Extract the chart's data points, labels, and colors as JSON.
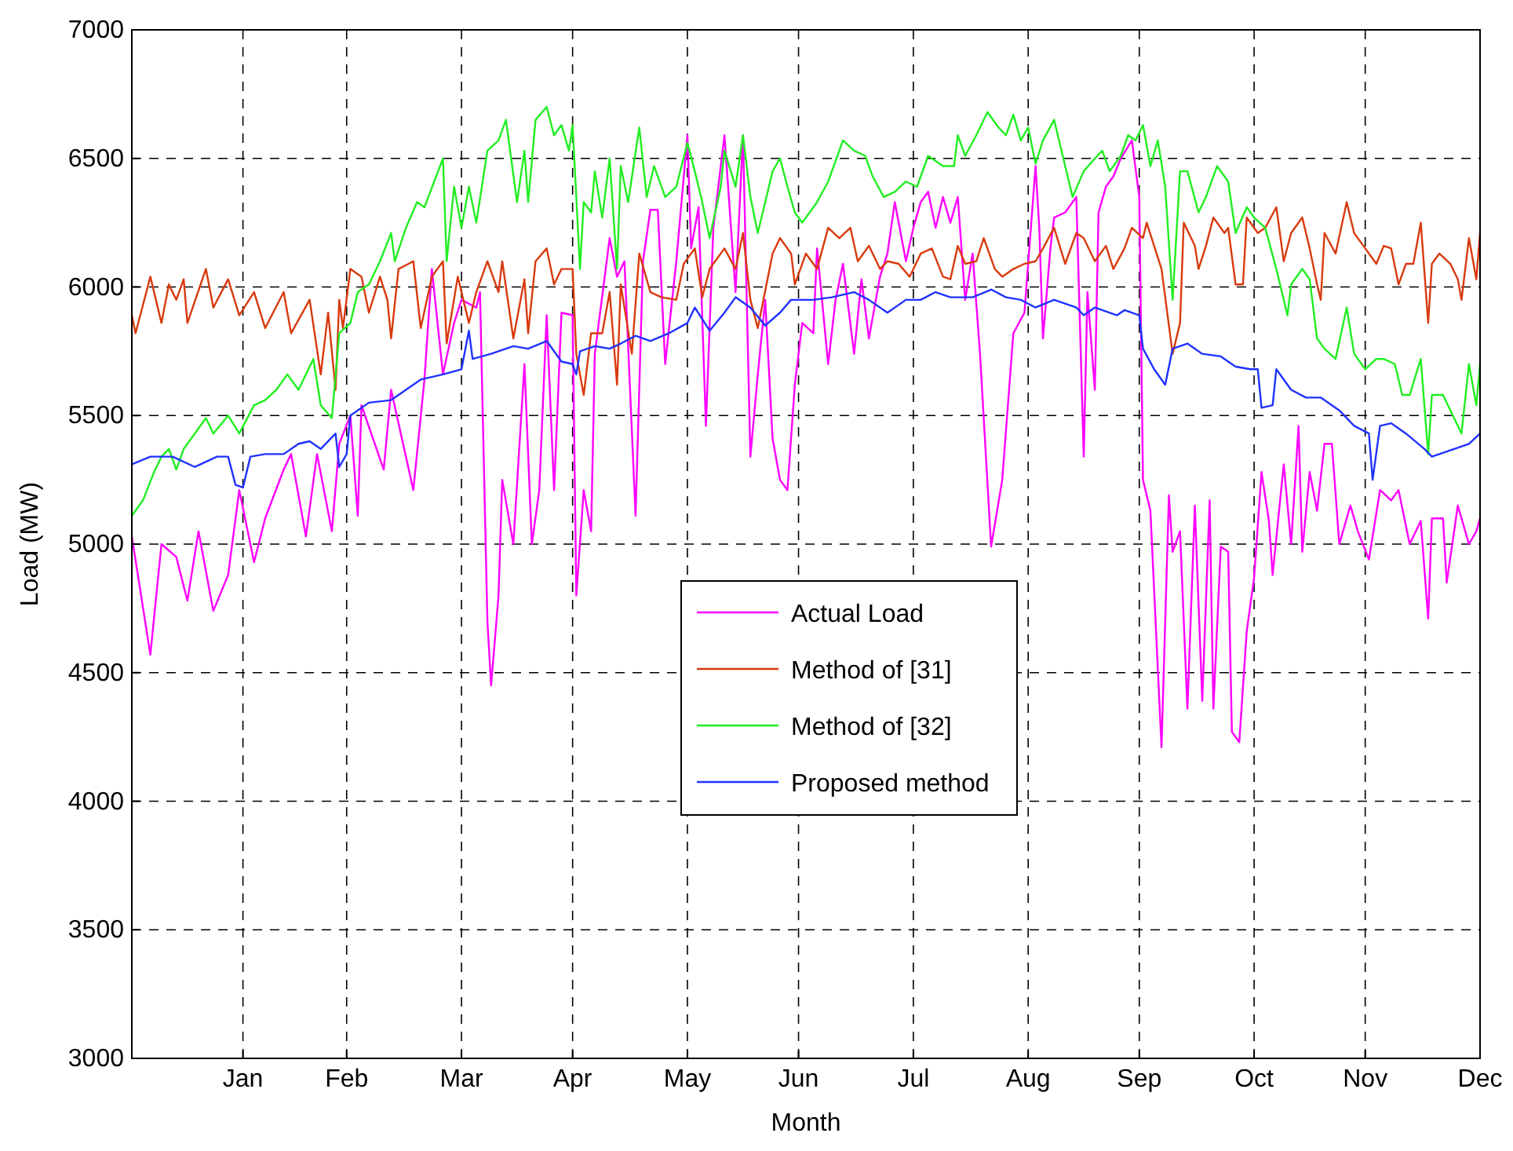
{
  "chart_data": {
    "type": "line",
    "xlabel": "Month",
    "ylabel": "Load (MW)",
    "xlim": [
      "--01-01",
      "--12-31"
    ],
    "xticks": [
      {
        "value": "--01-31",
        "label": "Jan"
      },
      {
        "value": "--02-28",
        "label": "Feb"
      },
      {
        "value": "--03-31",
        "label": "Mar"
      },
      {
        "value": "--04-30",
        "label": "Apr"
      },
      {
        "value": "--05-31",
        "label": "May"
      },
      {
        "value": "--06-30",
        "label": "Jun"
      },
      {
        "value": "--07-31",
        "label": "Jul"
      },
      {
        "value": "--08-31",
        "label": "Aug"
      },
      {
        "value": "--09-30",
        "label": "Sep"
      },
      {
        "value": "--10-31",
        "label": "Oct"
      },
      {
        "value": "--11-30",
        "label": "Nov"
      },
      {
        "value": "--12-31",
        "label": "Dec"
      }
    ],
    "ylim": [
      3000,
      7000
    ],
    "yticks": [
      3000,
      3500,
      4000,
      4500,
      5000,
      5500,
      6000,
      6500,
      7000
    ],
    "grid": true,
    "legend": "bottom",
    "line_style": "solid",
    "series": [
      {
        "name": "Actual Load",
        "color": "#ff00ff",
        "x": [
          "--01-01",
          "--01-06",
          "--01-09",
          "--01-13",
          "--01-16",
          "--01-19",
          "--01-23",
          "--01-27",
          "--01-30",
          "--02-03",
          "--02-06",
          "--02-11",
          "--02-13",
          "--02-17",
          "--02-20",
          "--02-24",
          "--02-26",
          "--03-01",
          "--03-03",
          "--03-04",
          "--03-10",
          "--03-12",
          "--03-18",
          "--03-21",
          "--03-23",
          "--03-26",
          "--03-29",
          "--03-31",
          "--04-04",
          "--04-05",
          "--04-07",
          "--04-08",
          "--04-10",
          "--04-11",
          "--04-14",
          "--04-17",
          "--04-19",
          "--04-21",
          "--04-23",
          "--04-25",
          "--04-27",
          "--04-30",
          "--05-01",
          "--05-03",
          "--05-05",
          "--05-06",
          "--05-10",
          "--05-12",
          "--05-14",
          "--05-17",
          "--05-19",
          "--05-21",
          "--05-23",
          "--05-25",
          "--05-28",
          "--05-31",
          "--06-01",
          "--06-03",
          "--06-05",
          "--06-07",
          "--06-10",
          "--06-13",
          "--06-15",
          "--06-17",
          "--06-19",
          "--06-21",
          "--06-23",
          "--06-25",
          "--06-27",
          "--06-29",
          "--07-01",
          "--07-04",
          "--07-05",
          "--07-08",
          "--07-10",
          "--07-12",
          "--07-15",
          "--07-17",
          "--07-19",
          "--07-22",
          "--07-24",
          "--07-26",
          "--07-29",
          "--07-31",
          "--08-02",
          "--08-04",
          "--08-06",
          "--08-08",
          "--08-10",
          "--08-12",
          "--08-14",
          "--08-16",
          "--08-18",
          "--08-21",
          "--08-24",
          "--08-27",
          "--08-30",
          "--09-02",
          "--09-03",
          "--09-04",
          "--09-06",
          "--09-07",
          "--09-10",
          "--09-13",
          "--09-15",
          "--09-16",
          "--09-18",
          "--09-19",
          "--09-21",
          "--09-23",
          "--09-25",
          "--09-28",
          "--09-30",
          "--10-01",
          "--10-03",
          "--10-06",
          "--10-08",
          "--10-09",
          "--10-11",
          "--10-13",
          "--10-15",
          "--10-17",
          "--10-19",
          "--10-20",
          "--10-22",
          "--10-24",
          "--10-25",
          "--10-27",
          "--10-29",
          "--10-31",
          "--11-02",
          "--11-04",
          "--11-05",
          "--11-08",
          "--11-10",
          "--11-12",
          "--11-13",
          "--11-15",
          "--11-17",
          "--11-19",
          "--11-21",
          "--11-23",
          "--11-26",
          "--11-28",
          "--12-01",
          "--12-04",
          "--12-07",
          "--12-09",
          "--12-12",
          "--12-15",
          "--12-17",
          "--12-18",
          "--12-21",
          "--12-22",
          "--12-25",
          "--12-28",
          "--12-30",
          "--12-31"
        ],
        "values": [
          5030,
          4570,
          5000,
          4950,
          4780,
          5050,
          4740,
          4880,
          5210,
          4930,
          5100,
          5290,
          5350,
          5030,
          5350,
          5050,
          5390,
          5500,
          5110,
          5540,
          5290,
          5600,
          5210,
          5640,
          6070,
          5660,
          5860,
          5950,
          5920,
          5980,
          4700,
          4450,
          4800,
          5250,
          5000,
          5700,
          5000,
          5210,
          5890,
          5210,
          5900,
          5890,
          4800,
          5210,
          5050,
          5740,
          6190,
          6040,
          6100,
          5110,
          6100,
          6300,
          6300,
          5700,
          6100,
          6590,
          6150,
          6310,
          5460,
          6230,
          6590,
          5980,
          6590,
          5340,
          5660,
          5950,
          5410,
          5250,
          5210,
          5620,
          5860,
          5820,
          6150,
          5700,
          5950,
          6090,
          5740,
          6030,
          5800,
          6040,
          6130,
          6330,
          6100,
          6230,
          6330,
          6370,
          6230,
          6350,
          6250,
          6350,
          5950,
          6130,
          5740,
          4990,
          5250,
          5820,
          5900,
          6470,
          6230,
          5800,
          6150,
          6270,
          6290,
          6350,
          5340,
          5980,
          5600,
          6290,
          6390,
          6430,
          6500,
          6570,
          6350,
          5250,
          5130,
          4210,
          5190,
          4970,
          5050,
          4360,
          5150,
          4390,
          5170,
          4360,
          4990,
          4970,
          4270,
          4230,
          4660,
          4870,
          5280,
          5090,
          4880,
          5310,
          5000,
          5460,
          4970,
          5280,
          5130,
          5390,
          5390,
          5000,
          5150,
          5050,
          4940,
          5210,
          5170,
          5210,
          5000,
          5090,
          4710,
          5100,
          5100,
          4850,
          5150,
          5000,
          5050,
          5100
        ]
      },
      {
        "name": "Method of [31]",
        "color": "#d83a0e",
        "x": [
          "--01-01",
          "--01-02",
          "--01-06",
          "--01-09",
          "--01-11",
          "--01-13",
          "--01-15",
          "--01-16",
          "--01-21",
          "--01-23",
          "--01-27",
          "--01-30",
          "--02-03",
          "--02-06",
          "--02-11",
          "--02-13",
          "--02-18",
          "--02-21",
          "--02-23",
          "--02-25",
          "--02-26",
          "--02-27",
          "--03-01",
          "--03-04",
          "--03-06",
          "--03-09",
          "--03-11",
          "--03-12",
          "--03-14",
          "--03-18",
          "--03-20",
          "--03-23",
          "--03-26",
          "--03-27",
          "--03-30",
          "--04-02",
          "--04-04",
          "--04-07",
          "--04-10",
          "--04-11",
          "--04-14",
          "--04-17",
          "--04-18",
          "--04-20",
          "--04-23",
          "--04-25",
          "--04-27",
          "--04-30",
          "--05-01",
          "--05-03",
          "--05-05",
          "--05-08",
          "--05-10",
          "--05-12",
          "--05-13",
          "--05-16",
          "--05-18",
          "--05-21",
          "--05-24",
          "--05-28",
          "--05-30",
          "--06-02",
          "--06-04",
          "--06-06",
          "--06-10",
          "--06-13",
          "--06-15",
          "--06-17",
          "--06-19",
          "--06-23",
          "--06-25",
          "--06-28",
          "--06-29",
          "--07-02",
          "--07-05",
          "--07-08",
          "--07-11",
          "--07-14",
          "--07-16",
          "--07-19",
          "--07-22",
          "--07-24",
          "--07-27",
          "--07-30",
          "--08-02",
          "--08-05",
          "--08-08",
          "--08-10",
          "--08-12",
          "--08-14",
          "--08-17",
          "--08-19",
          "--08-22",
          "--08-24",
          "--08-27",
          "--08-30",
          "--09-02",
          "--09-04",
          "--09-07",
          "--09-10",
          "--09-13",
          "--09-15",
          "--09-18",
          "--09-21",
          "--09-23",
          "--09-26",
          "--09-28",
          "--10-01",
          "--10-02",
          "--10-04",
          "--10-06",
          "--10-09",
          "--10-11",
          "--10-12",
          "--10-15",
          "--10-16",
          "--10-18",
          "--10-20",
          "--10-23",
          "--10-24",
          "--10-26",
          "--10-28",
          "--10-29",
          "--11-01",
          "--11-03",
          "--11-06",
          "--11-08",
          "--11-10",
          "--11-13",
          "--11-15",
          "--11-17",
          "--11-18",
          "--11-19",
          "--11-22",
          "--11-25",
          "--11-27",
          "--11-30",
          "--12-03",
          "--12-05",
          "--12-07",
          "--12-09",
          "--12-11",
          "--12-13",
          "--12-15",
          "--12-17",
          "--12-18",
          "--12-20",
          "--12-23",
          "--12-25",
          "--12-26",
          "--12-28",
          "--12-30",
          "--12-31"
        ],
        "values": [
          5890,
          5820,
          6040,
          5860,
          6010,
          5950,
          6030,
          5860,
          6070,
          5920,
          6030,
          5890,
          5980,
          5840,
          5980,
          5820,
          5950,
          5660,
          5900,
          5600,
          5950,
          5840,
          6070,
          6040,
          5900,
          6040,
          5950,
          5800,
          6070,
          6100,
          5840,
          6040,
          6100,
          5780,
          6040,
          5860,
          5980,
          6100,
          5980,
          6100,
          5800,
          6030,
          5820,
          6100,
          6150,
          6010,
          6070,
          6070,
          5740,
          5580,
          5820,
          5820,
          5980,
          5620,
          6010,
          5740,
          6130,
          5980,
          5960,
          5950,
          6090,
          6150,
          5960,
          6070,
          6150,
          6070,
          6210,
          5950,
          5840,
          6130,
          6190,
          6130,
          6010,
          6130,
          6070,
          6230,
          6190,
          6230,
          6100,
          6160,
          6070,
          6100,
          6090,
          6040,
          6130,
          6150,
          6040,
          6030,
          6160,
          6090,
          6100,
          6190,
          6070,
          6040,
          6070,
          6090,
          6100,
          6150,
          6230,
          6090,
          6210,
          6190,
          6100,
          6160,
          6070,
          6150,
          6230,
          6190,
          6250,
          6160,
          6070,
          5740,
          5860,
          6250,
          6160,
          6070,
          6160,
          6270,
          6210,
          6230,
          6010,
          6010,
          6270,
          6210,
          6230,
          6310,
          6100,
          6210,
          6270,
          6150,
          6010,
          5950,
          6210,
          6130,
          6330,
          6210,
          6150,
          6090,
          6160,
          6150,
          6010,
          6090,
          6090,
          6250,
          5860,
          6090,
          6130,
          6090,
          6030,
          5950,
          6190,
          6030,
          6210
        ]
      },
      {
        "name": "Method of [32]",
        "color": "#22ee22",
        "x": [
          "--01-01",
          "--01-04",
          "--01-07",
          "--01-09",
          "--01-11",
          "--01-13",
          "--01-15",
          "--01-18",
          "--01-21",
          "--01-23",
          "--01-27",
          "--01-30",
          "--02-03",
          "--02-06",
          "--02-09",
          "--02-12",
          "--02-15",
          "--02-19",
          "--02-21",
          "--02-24",
          "--02-26",
          "--03-01",
          "--03-03",
          "--03-06",
          "--03-09",
          "--03-12",
          "--03-13",
          "--03-16",
          "--03-19",
          "--03-21",
          "--03-26",
          "--03-27",
          "--03-29",
          "--03-31",
          "--04-02",
          "--04-04",
          "--04-07",
          "--04-10",
          "--04-12",
          "--04-15",
          "--04-17",
          "--04-18",
          "--04-20",
          "--04-23",
          "--04-25",
          "--04-27",
          "--04-29",
          "--04-30",
          "--05-02",
          "--05-03",
          "--05-05",
          "--05-06",
          "--05-08",
          "--05-10",
          "--05-12",
          "--05-13",
          "--05-15",
          "--05-18",
          "--05-20",
          "--05-22",
          "--05-25",
          "--05-28",
          "--05-31",
          "--06-02",
          "--06-04",
          "--06-06",
          "--06-09",
          "--06-10",
          "--06-13",
          "--06-15",
          "--06-17",
          "--06-19",
          "--06-23",
          "--06-25",
          "--06-27",
          "--06-29",
          "--07-01",
          "--07-05",
          "--07-08",
          "--07-12",
          "--07-15",
          "--07-18",
          "--07-20",
          "--07-23",
          "--07-26",
          "--07-29",
          "--08-01",
          "--08-04",
          "--08-08",
          "--08-11",
          "--08-12",
          "--08-14",
          "--08-17",
          "--08-20",
          "--08-23",
          "--08-25",
          "--08-27",
          "--08-29",
          "--08-31",
          "--09-02",
          "--09-04",
          "--09-07",
          "--09-09",
          "--09-12",
          "--09-15",
          "--09-18",
          "--09-20",
          "--09-22",
          "--09-25",
          "--09-27",
          "--09-29",
          "--10-01",
          "--10-03",
          "--10-05",
          "--10-07",
          "--10-09",
          "--10-11",
          "--10-13",
          "--10-16",
          "--10-18",
          "--10-21",
          "--10-24",
          "--10-26",
          "--10-29",
          "--10-31",
          "--11-03",
          "--11-06",
          "--11-09",
          "--11-10",
          "--11-13",
          "--11-15",
          "--11-17",
          "--11-19",
          "--11-22",
          "--11-25",
          "--11-27",
          "--11-30",
          "--12-03",
          "--12-05",
          "--12-08",
          "--12-10",
          "--12-12",
          "--12-15",
          "--12-17",
          "--12-18",
          "--12-21",
          "--12-24",
          "--12-26",
          "--12-28",
          "--12-30",
          "--12-31"
        ],
        "values": [
          5110,
          5170,
          5280,
          5340,
          5370,
          5290,
          5370,
          5430,
          5490,
          5430,
          5500,
          5430,
          5540,
          5560,
          5600,
          5660,
          5600,
          5720,
          5540,
          5490,
          5820,
          5860,
          5980,
          6010,
          6100,
          6210,
          6100,
          6230,
          6330,
          6310,
          6500,
          6100,
          6390,
          6230,
          6390,
          6250,
          6530,
          6570,
          6650,
          6330,
          6530,
          6330,
          6650,
          6700,
          6590,
          6630,
          6530,
          6630,
          6070,
          6330,
          6290,
          6450,
          6270,
          6500,
          6070,
          6470,
          6330,
          6620,
          6350,
          6470,
          6350,
          6390,
          6560,
          6450,
          6330,
          6190,
          6390,
          6530,
          6390,
          6590,
          6350,
          6210,
          6450,
          6500,
          6390,
          6290,
          6250,
          6330,
          6410,
          6570,
          6530,
          6510,
          6430,
          6350,
          6370,
          6410,
          6390,
          6510,
          6470,
          6470,
          6590,
          6510,
          6590,
          6680,
          6620,
          6590,
          6670,
          6570,
          6620,
          6480,
          6570,
          6650,
          6530,
          6350,
          6450,
          6500,
          6530,
          6450,
          6510,
          6590,
          6570,
          6630,
          6470,
          6570,
          6390,
          5950,
          6450,
          6450,
          6290,
          6350,
          6470,
          6410,
          6210,
          6310,
          6270,
          6230,
          6070,
          5890,
          6010,
          6070,
          6030,
          5800,
          5760,
          5720,
          5920,
          5740,
          5680,
          5720,
          5720,
          5700,
          5580,
          5580,
          5720,
          5350,
          5580,
          5580,
          5490,
          5430,
          5700,
          5540,
          5700
        ]
      },
      {
        "name": "Proposed method",
        "color": "#1f32ff",
        "x": [
          "--01-01",
          "--01-06",
          "--01-12",
          "--01-18",
          "--01-21",
          "--01-24",
          "--01-27",
          "--01-29",
          "--01-31",
          "--02-02",
          "--02-06",
          "--02-11",
          "--02-15",
          "--02-18",
          "--02-21",
          "--02-25",
          "--02-26",
          "--02-28",
          "--03-01",
          "--03-06",
          "--03-12",
          "--03-16",
          "--03-20",
          "--03-26",
          "--03-31",
          "--04-02",
          "--04-03",
          "--04-08",
          "--04-14",
          "--04-18",
          "--04-23",
          "--04-27",
          "--04-30",
          "--05-01",
          "--05-02",
          "--05-06",
          "--05-10",
          "--05-13",
          "--05-17",
          "--05-21",
          "--05-26",
          "--05-31",
          "--06-02",
          "--06-06",
          "--06-10",
          "--06-13",
          "--06-17",
          "--06-21",
          "--06-25",
          "--06-28",
          "--07-04",
          "--07-09",
          "--07-15",
          "--07-19",
          "--07-24",
          "--07-29",
          "--08-02",
          "--08-06",
          "--08-10",
          "--08-16",
          "--08-21",
          "--08-25",
          "--08-29",
          "--09-02",
          "--09-07",
          "--09-13",
          "--09-15",
          "--09-18",
          "--09-24",
          "--09-26",
          "--09-30",
          "--10-01",
          "--10-04",
          "--10-07",
          "--10-09",
          "--10-13",
          "--10-17",
          "--10-22",
          "--10-26",
          "--10-30",
          "--11-01",
          "--11-02",
          "--11-05",
          "--11-06",
          "--11-10",
          "--11-14",
          "--11-18",
          "--11-23",
          "--11-27",
          "--12-01",
          "--12-02",
          "--12-04",
          "--12-07",
          "--12-11",
          "--12-16",
          "--12-18",
          "--12-24",
          "--12-28",
          "--12-31"
        ],
        "values": [
          5310,
          5340,
          5340,
          5300,
          5320,
          5340,
          5340,
          5230,
          5220,
          5340,
          5350,
          5350,
          5390,
          5400,
          5370,
          5430,
          5300,
          5350,
          5500,
          5550,
          5560,
          5600,
          5640,
          5660,
          5680,
          5830,
          5720,
          5740,
          5770,
          5760,
          5790,
          5710,
          5700,
          5660,
          5750,
          5770,
          5760,
          5780,
          5810,
          5790,
          5820,
          5860,
          5920,
          5830,
          5900,
          5960,
          5920,
          5850,
          5900,
          5950,
          5950,
          5960,
          5980,
          5950,
          5900,
          5950,
          5950,
          5980,
          5960,
          5960,
          5990,
          5960,
          5950,
          5920,
          5950,
          5920,
          5890,
          5920,
          5890,
          5910,
          5890,
          5760,
          5680,
          5620,
          5760,
          5780,
          5740,
          5730,
          5690,
          5680,
          5680,
          5530,
          5540,
          5680,
          5600,
          5570,
          5570,
          5520,
          5460,
          5430,
          5250,
          5460,
          5470,
          5430,
          5370,
          5340,
          5370,
          5390,
          5430
        ]
      }
    ]
  }
}
